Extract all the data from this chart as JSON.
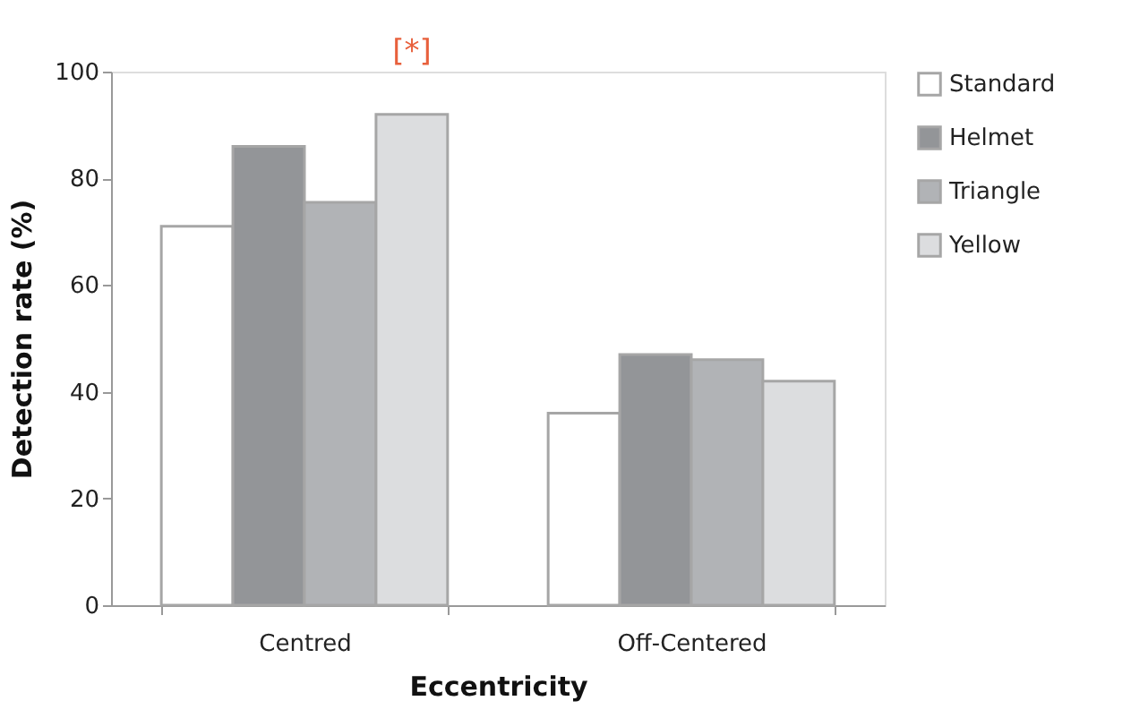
{
  "chart_data": {
    "type": "bar",
    "xlabel": "Eccentricity",
    "ylabel": "Detection rate (%)",
    "categories": [
      "Centred",
      "Off-Centered"
    ],
    "series": [
      {
        "name": "Standard",
        "color": "#ffffff",
        "values": [
          71,
          36
        ]
      },
      {
        "name": "Helmet",
        "color": "#939598",
        "values": [
          86,
          47
        ]
      },
      {
        "name": "Triangle",
        "color": "#b1b3b6",
        "values": [
          75.5,
          46
        ]
      },
      {
        "name": "Yellow",
        "color": "#dcdddf",
        "values": [
          92,
          42
        ]
      }
    ],
    "ylim": [
      0,
      100
    ],
    "yticks": [
      0,
      20,
      40,
      60,
      80,
      100
    ],
    "grid": false,
    "legend": "right",
    "annotations": [
      "[*]"
    ]
  }
}
